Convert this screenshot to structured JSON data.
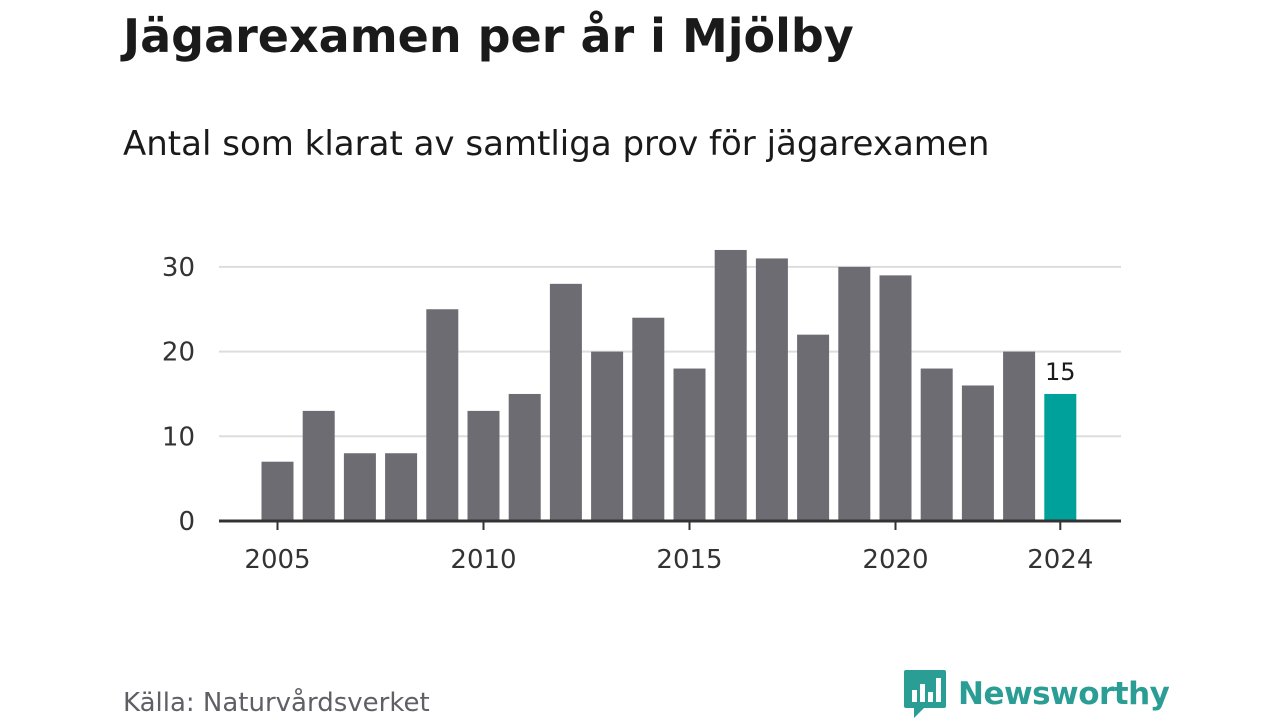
{
  "header": {
    "title": "Jägarexamen per år i Mjölby",
    "subtitle": "Antal som klarat av samtliga prov för jägarexamen"
  },
  "footer": {
    "source": "Källa: Naturvårdsverket",
    "brand": "Newsworthy"
  },
  "colors": {
    "bar": "#6d6c72",
    "highlight": "#00a19a",
    "grid": "#dddddd",
    "axis": "#333333",
    "brand": "#2a9d94"
  },
  "icons": {
    "brand_logo": "bar-chart-speech-bubble-icon"
  },
  "chart_data": {
    "type": "bar",
    "title": "Jägarexamen per år i Mjölby",
    "subtitle": "Antal som klarat av samtliga prov för jägarexamen",
    "xlabel": "",
    "ylabel": "",
    "categories": [
      2005,
      2006,
      2007,
      2008,
      2009,
      2010,
      2011,
      2012,
      2013,
      2014,
      2015,
      2016,
      2017,
      2018,
      2019,
      2020,
      2021,
      2022,
      2023,
      2024
    ],
    "values": [
      7,
      13,
      8,
      8,
      25,
      13,
      15,
      28,
      20,
      24,
      18,
      32,
      31,
      22,
      30,
      29,
      18,
      16,
      20,
      15
    ],
    "highlight_category": 2024,
    "data_labels": [
      {
        "category": 2024,
        "text": "15"
      }
    ],
    "x_ticks": [
      2005,
      2010,
      2015,
      2020,
      2024
    ],
    "y_ticks": [
      0,
      10,
      20,
      30
    ],
    "ylim": [
      0,
      32
    ],
    "grid": true,
    "legend": "none"
  }
}
